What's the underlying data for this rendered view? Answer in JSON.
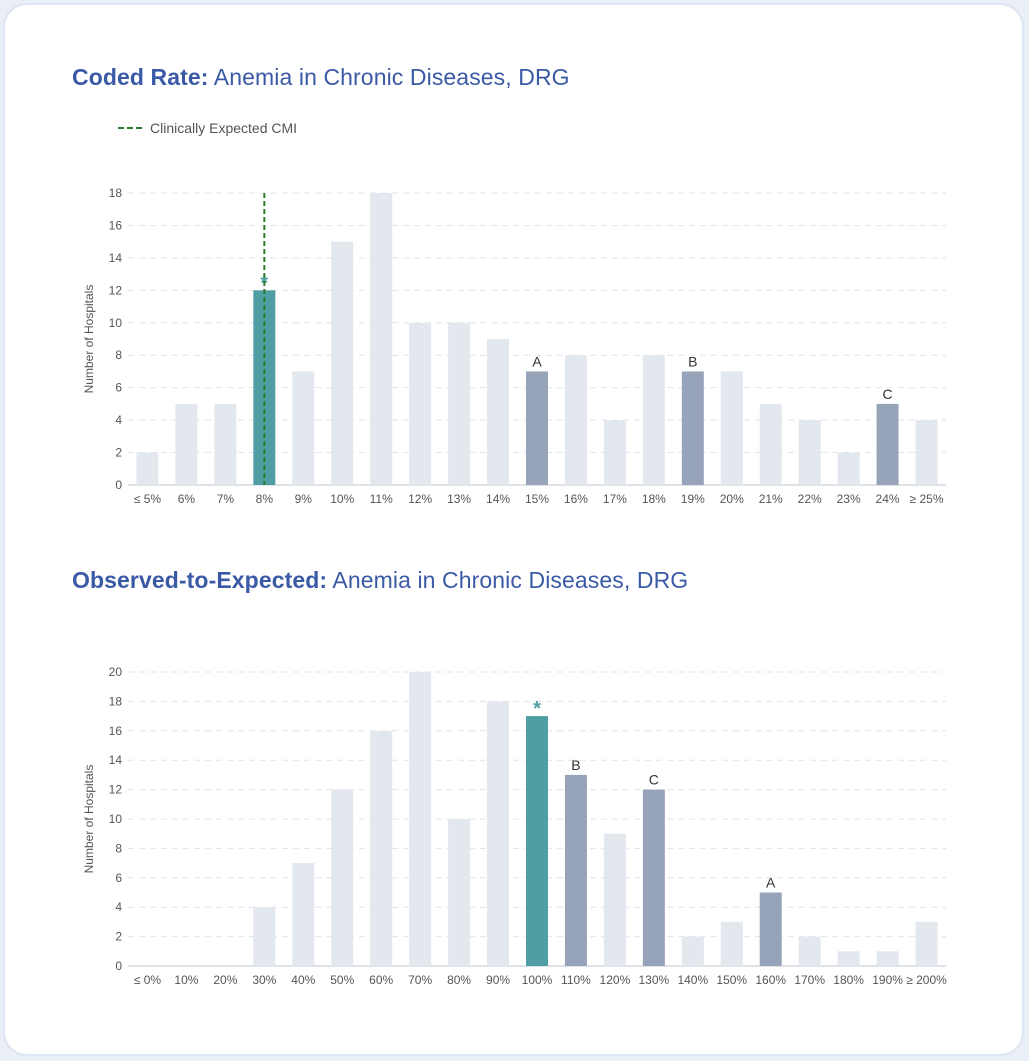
{
  "colors": {
    "bar_default": "#e3e7ee",
    "bar_highlight": "#4f9ea3",
    "bar_peer": "#97a3b8",
    "expected_line": "#2b7a2b",
    "title": "#3b5aa6"
  },
  "legend": {
    "expected_line_label": "Clinically Expected CMI"
  },
  "chart_data": [
    {
      "type": "bar",
      "title_bold": "Coded Rate:",
      "title_rest": " Anemia in Chronic Diseases, DRG",
      "xlabel": "",
      "ylabel": "Number of Hospitals",
      "ylim": [
        0,
        18
      ],
      "yticks": [
        0,
        2,
        4,
        6,
        8,
        10,
        12,
        14,
        16,
        18
      ],
      "grid": true,
      "categories": [
        "≤ 5%",
        "6%",
        "7%",
        "8%",
        "9%",
        "10%",
        "11%",
        "12%",
        "13%",
        "14%",
        "15%",
        "16%",
        "17%",
        "18%",
        "19%",
        "20%",
        "21%",
        "22%",
        "23%",
        "24%",
        "≥ 25%"
      ],
      "values": [
        2,
        5,
        5,
        12,
        7,
        15,
        18,
        10,
        10,
        9,
        7,
        8,
        4,
        8,
        7,
        7,
        5,
        4,
        2,
        5,
        4
      ],
      "highlight": {
        "category": "8%",
        "marker": "*"
      },
      "peers": [
        {
          "category": "15%",
          "label": "A"
        },
        {
          "category": "19%",
          "label": "B"
        },
        {
          "category": "24%",
          "label": "C"
        }
      ],
      "expected_line_category": "8%"
    },
    {
      "type": "bar",
      "title_bold": "Observed-to-Expected:",
      "title_rest": " Anemia in Chronic Diseases, DRG",
      "xlabel": "",
      "ylabel": "Number of Hospitals",
      "ylim": [
        0,
        20
      ],
      "yticks": [
        0,
        2,
        4,
        6,
        8,
        10,
        12,
        14,
        16,
        18,
        20
      ],
      "grid": true,
      "categories": [
        "≤ 0%",
        "10%",
        "20%",
        "30%",
        "40%",
        "50%",
        "60%",
        "70%",
        "80%",
        "90%",
        "100%",
        "110%",
        "120%",
        "130%",
        "140%",
        "150%",
        "160%",
        "170%",
        "180%",
        "190%",
        "≥ 200%"
      ],
      "values": [
        0,
        0,
        0,
        4,
        7,
        12,
        16,
        20,
        10,
        18,
        17,
        13,
        9,
        12,
        2,
        3,
        5,
        2,
        1,
        1,
        3
      ],
      "highlight": {
        "category": "100%",
        "marker": "*"
      },
      "peers": [
        {
          "category": "110%",
          "label": "B"
        },
        {
          "category": "130%",
          "label": "C"
        },
        {
          "category": "160%",
          "label": "A"
        }
      ],
      "expected_line_category": null
    }
  ]
}
